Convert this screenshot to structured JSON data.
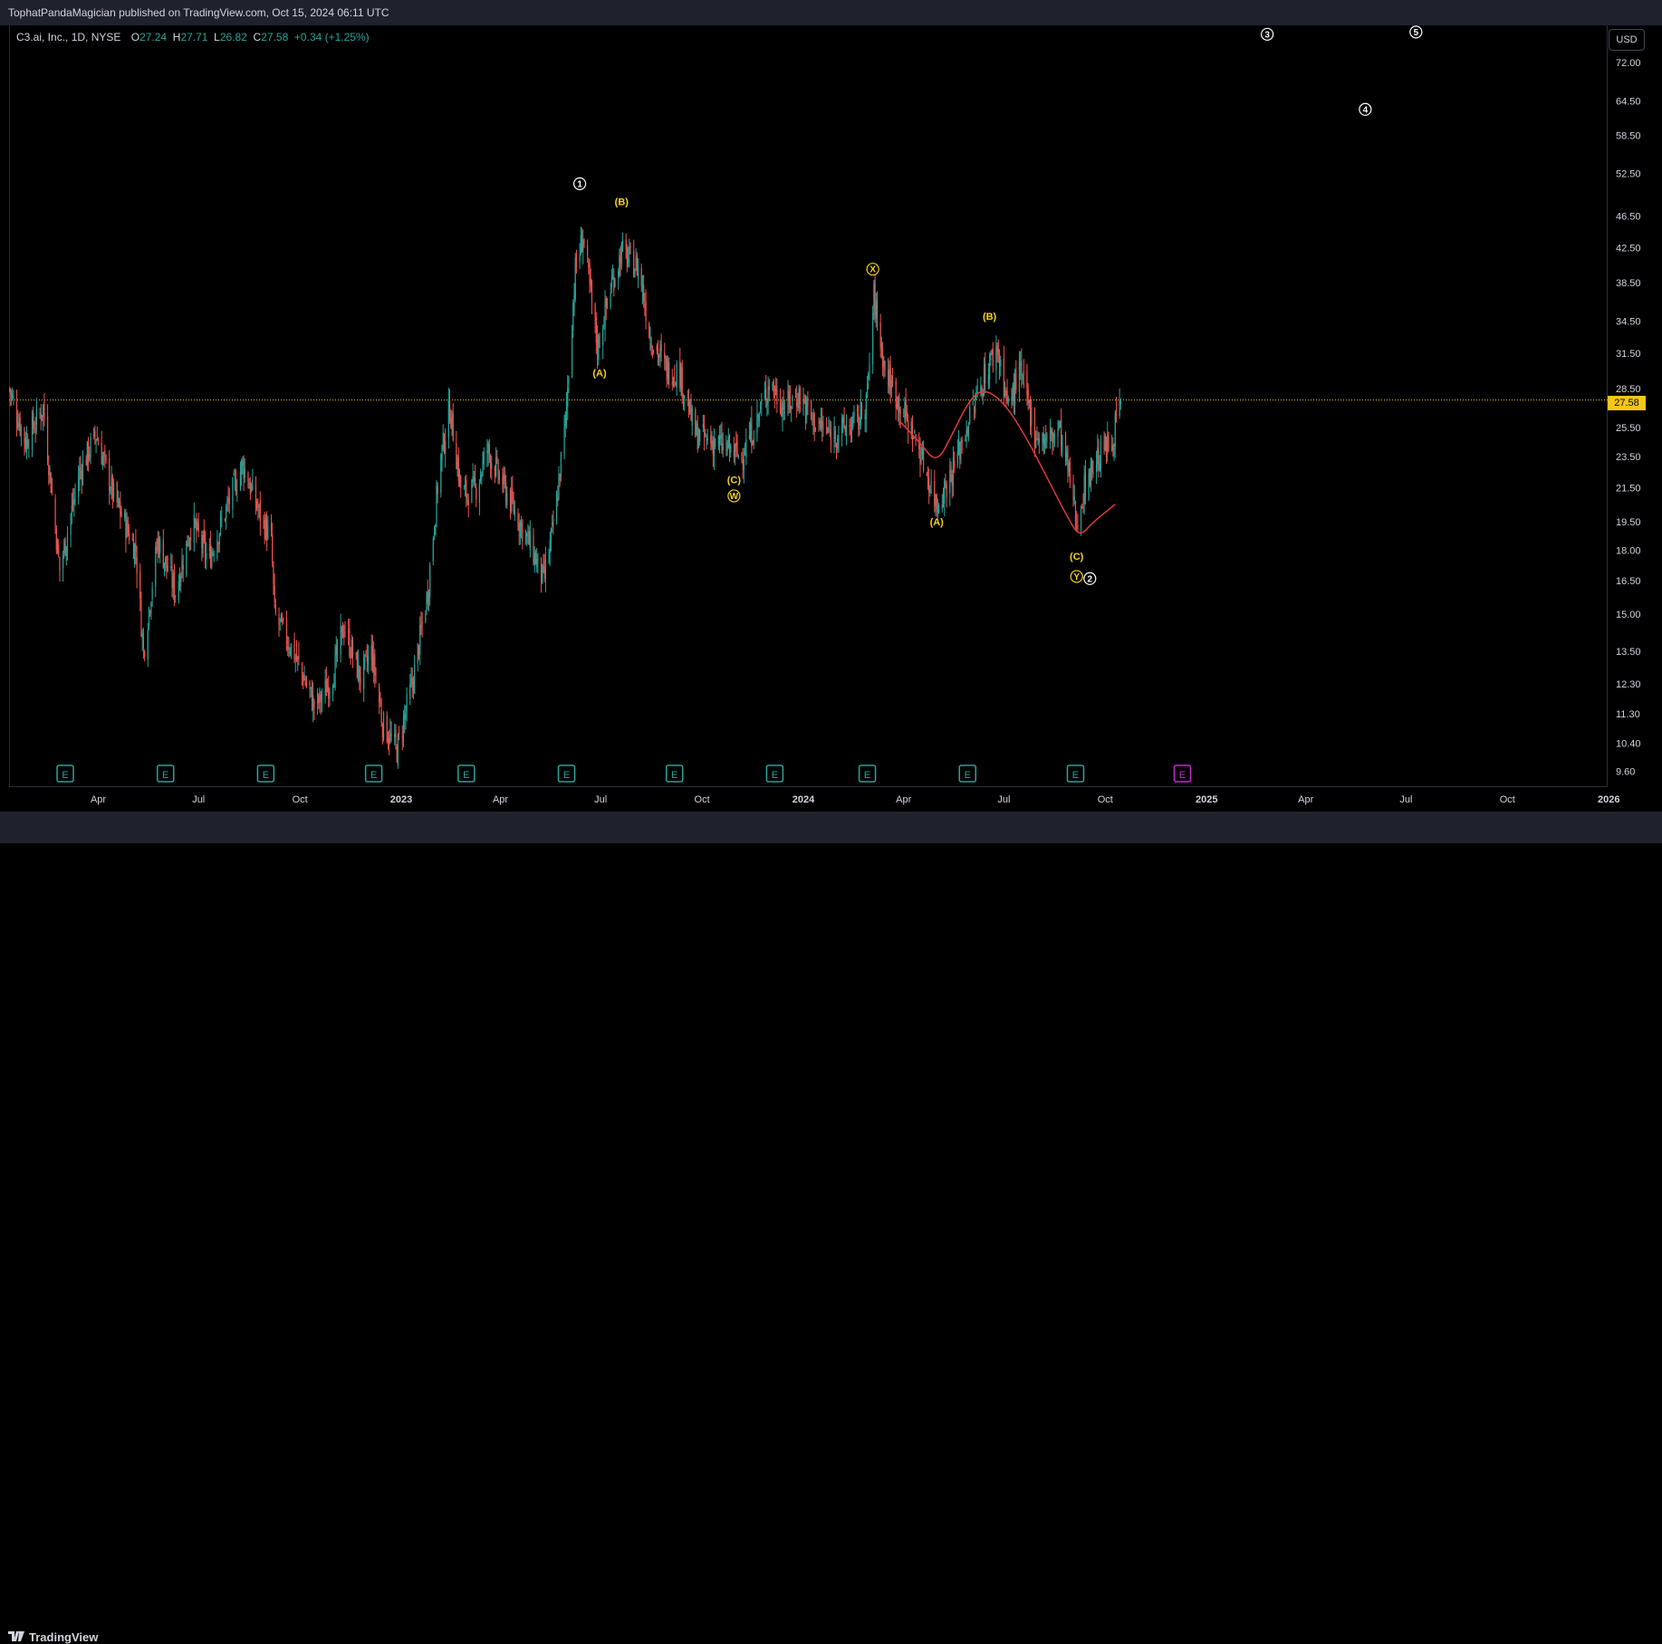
{
  "header": {
    "published": "TophatPandaMagician published on TradingView.com, Oct 15, 2024 06:11 UTC"
  },
  "legend": {
    "symbol": "C3.ai, Inc., 1D, NYSE",
    "o_label": "O",
    "o_value": "27.24",
    "h_label": "H",
    "h_value": "27.71",
    "l_label": "L",
    "l_value": "26.82",
    "c_label": "C",
    "c_value": "27.58",
    "change": "+0.34 (+1.25%)"
  },
  "currency": "USD",
  "brand": {
    "name": "TradingView"
  },
  "colors": {
    "up": "#26a69a",
    "down": "#ef5350",
    "wave_yellow": "#f5d31a",
    "last_price": "#f5c518",
    "bg": "#000000",
    "curve": "#e03a3a",
    "earnings": "#26a69a",
    "earnings_future": "#c02cc8"
  },
  "chart_data": {
    "type": "candlestick",
    "title": "C3.ai, Inc., 1D, NYSE",
    "scale": "log",
    "ylim": [
      9.2,
      80
    ],
    "y_ticks": [
      72.0,
      64.5,
      58.5,
      52.5,
      46.5,
      42.5,
      38.5,
      34.5,
      31.5,
      28.5,
      25.5,
      23.5,
      21.5,
      19.5,
      18.0,
      16.5,
      15.0,
      13.5,
      12.3,
      11.3,
      10.4,
      9.6
    ],
    "y_tick_labels": [
      "72.00",
      "64.50",
      "58.50",
      "52.50",
      "46.50",
      "42.50",
      "38.50",
      "34.50",
      "31.50",
      "28.50",
      "25.50",
      "23.50",
      "21.50",
      "19.50",
      "18.00",
      "16.50",
      "15.00",
      "13.50",
      "12.30",
      "11.30",
      "10.40",
      "9.60"
    ],
    "x_ticks": [
      {
        "label": "Apr",
        "date": "2022-04-01"
      },
      {
        "label": "Jul",
        "date": "2022-07-01"
      },
      {
        "label": "Oct",
        "date": "2022-10-01"
      },
      {
        "label": "2023",
        "date": "2023-01-01",
        "bold": true
      },
      {
        "label": "Apr",
        "date": "2023-04-01"
      },
      {
        "label": "Jul",
        "date": "2023-07-01"
      },
      {
        "label": "Oct",
        "date": "2023-10-01"
      },
      {
        "label": "2024",
        "date": "2024-01-01",
        "bold": true
      },
      {
        "label": "Apr",
        "date": "2024-04-01"
      },
      {
        "label": "Jul",
        "date": "2024-07-01"
      },
      {
        "label": "Oct",
        "date": "2024-10-01"
      },
      {
        "label": "2025",
        "date": "2025-01-01",
        "bold": true
      },
      {
        "label": "Apr",
        "date": "2025-04-01"
      },
      {
        "label": "Jul",
        "date": "2025-07-01"
      },
      {
        "label": "Oct",
        "date": "2025-10-01"
      },
      {
        "label": "2026",
        "date": "2026-01-01",
        "bold": true
      }
    ],
    "x_range": [
      "2022-01-10",
      "2025-12-31"
    ],
    "last_price": 27.58,
    "last_price_label": "27.58",
    "price_path": [
      [
        "2022-01-10",
        28.5
      ],
      [
        "2022-01-25",
        24.5
      ],
      [
        "2022-02-10",
        27
      ],
      [
        "2022-02-25",
        17
      ],
      [
        "2022-03-15",
        22.5
      ],
      [
        "2022-03-30",
        25
      ],
      [
        "2022-04-15",
        21
      ],
      [
        "2022-05-05",
        18
      ],
      [
        "2022-05-12",
        13.5
      ],
      [
        "2022-05-25",
        18.5
      ],
      [
        "2022-06-10",
        16
      ],
      [
        "2022-06-25",
        19.5
      ],
      [
        "2022-07-10",
        17.5
      ],
      [
        "2022-07-25",
        20
      ],
      [
        "2022-08-10",
        23
      ],
      [
        "2022-08-25",
        20
      ],
      [
        "2022-09-05",
        18.5
      ],
      [
        "2022-09-08",
        15
      ],
      [
        "2022-09-25",
        13.5
      ],
      [
        "2022-10-15",
        11.5
      ],
      [
        "2022-10-30",
        12.5
      ],
      [
        "2022-11-10",
        14.5
      ],
      [
        "2022-11-25",
        12.5
      ],
      [
        "2022-12-05",
        13.5
      ],
      [
        "2022-12-15",
        11
      ],
      [
        "2022-12-28",
        10.2
      ],
      [
        "2023-01-12",
        12.5
      ],
      [
        "2023-01-25",
        16
      ],
      [
        "2023-02-05",
        23
      ],
      [
        "2023-02-14",
        27
      ],
      [
        "2023-02-25",
        21
      ],
      [
        "2023-03-10",
        21.5
      ],
      [
        "2023-03-20",
        24
      ],
      [
        "2023-04-01",
        22
      ],
      [
        "2023-04-15",
        20
      ],
      [
        "2023-04-30",
        18
      ],
      [
        "2023-05-10",
        16.5
      ],
      [
        "2023-05-20",
        19.5
      ],
      [
        "2023-05-30",
        26
      ],
      [
        "2023-06-08",
        40
      ],
      [
        "2023-06-15",
        44
      ],
      [
        "2023-06-28",
        32
      ],
      [
        "2023-07-10",
        38
      ],
      [
        "2023-07-20",
        42
      ],
      [
        "2023-08-05",
        40
      ],
      [
        "2023-08-15",
        33
      ],
      [
        "2023-08-30",
        30
      ],
      [
        "2023-09-10",
        30
      ],
      [
        "2023-09-25",
        25
      ],
      [
        "2023-10-10",
        24.5
      ],
      [
        "2023-10-25",
        24
      ],
      [
        "2023-11-05",
        23.5
      ],
      [
        "2023-11-20",
        26
      ],
      [
        "2023-12-01",
        29
      ],
      [
        "2023-12-15",
        27
      ],
      [
        "2023-12-28",
        28
      ],
      [
        "2024-01-10",
        26
      ],
      [
        "2024-01-25",
        25
      ],
      [
        "2024-02-10",
        25.5
      ],
      [
        "2024-02-20",
        26
      ],
      [
        "2024-02-28",
        28
      ],
      [
        "2024-03-05",
        37
      ],
      [
        "2024-03-15",
        30
      ],
      [
        "2024-03-30",
        27
      ],
      [
        "2024-04-15",
        24
      ],
      [
        "2024-05-01",
        20.5
      ],
      [
        "2024-05-15",
        22.5
      ],
      [
        "2024-05-30",
        26
      ],
      [
        "2024-06-15",
        30
      ],
      [
        "2024-06-25",
        32
      ],
      [
        "2024-07-05",
        27
      ],
      [
        "2024-07-15",
        30
      ],
      [
        "2024-07-30",
        25
      ],
      [
        "2024-08-10",
        24.5
      ],
      [
        "2024-08-20",
        25.5
      ],
      [
        "2024-08-30",
        22
      ],
      [
        "2024-09-05",
        19.5
      ],
      [
        "2024-09-12",
        21.5
      ],
      [
        "2024-09-20",
        23
      ],
      [
        "2024-09-30",
        24
      ],
      [
        "2024-10-07",
        24.5
      ],
      [
        "2024-10-15",
        27.58
      ]
    ],
    "wave_labels_yellow": [
      {
        "text": "(B)",
        "date": "2023-07-20",
        "price": 48.5
      },
      {
        "text": "(A)",
        "date": "2023-06-30",
        "price": 29.8
      },
      {
        "text": "(C)",
        "date": "2023-10-30",
        "price": 22.0
      },
      {
        "text": "W",
        "date": "2023-10-30",
        "price": 21.0,
        "circled": true
      },
      {
        "text": "X",
        "date": "2024-03-04",
        "price": 40.0,
        "circled": true
      },
      {
        "text": "(B)",
        "date": "2024-06-18",
        "price": 35.0
      },
      {
        "text": "(A)",
        "date": "2024-05-01",
        "price": 19.5
      },
      {
        "text": "(C)",
        "date": "2024-09-05",
        "price": 17.7
      },
      {
        "text": "Y",
        "date": "2024-09-05",
        "price": 16.7,
        "circled": true
      }
    ],
    "wave_labels_white": [
      {
        "text": "1",
        "date": "2023-06-12",
        "price": 51.0
      },
      {
        "text": "2",
        "date": "2024-09-17",
        "price": 16.6
      },
      {
        "text": "3",
        "date": "2025-02-25",
        "price": 78.0
      },
      {
        "text": "4",
        "date": "2025-05-25",
        "price": 63.0
      },
      {
        "text": "5",
        "date": "2025-07-10",
        "price": 78.5
      }
    ],
    "curve_path": [
      [
        "2024-03-28",
        26
      ],
      [
        "2024-04-15",
        24.5
      ],
      [
        "2024-05-01",
        23
      ],
      [
        "2024-05-15",
        25
      ],
      [
        "2024-05-30",
        27.5
      ],
      [
        "2024-06-12",
        28.5
      ],
      [
        "2024-06-30",
        27.5
      ],
      [
        "2024-07-20",
        25
      ],
      [
        "2024-08-10",
        22
      ],
      [
        "2024-08-30",
        19.5
      ],
      [
        "2024-09-08",
        18.7
      ],
      [
        "2024-09-20",
        19.5
      ],
      [
        "2024-10-10",
        20.5
      ]
    ],
    "earnings_dates": [
      "2022-03-02",
      "2022-06-01",
      "2022-08-31",
      "2022-12-07",
      "2023-03-01",
      "2023-05-31",
      "2023-09-06",
      "2023-12-06",
      "2024-02-28",
      "2024-05-29",
      "2024-09-04"
    ],
    "earnings_future": [
      "2024-12-10"
    ],
    "earnings_glyph": "E"
  }
}
